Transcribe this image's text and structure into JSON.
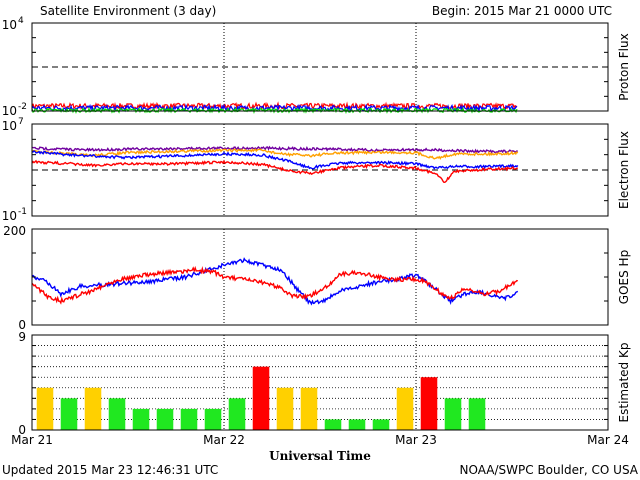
{
  "header": {
    "title": "Satellite Environment (3 day)",
    "begin": "Begin:  2015 Mar 21 0000 UTC"
  },
  "footer": {
    "updated": "Updated 2015 Mar 23 12:46:31 UTC",
    "credit": "NOAA/SWPC Boulder, CO USA",
    "xlabel": "Universal Time"
  },
  "x_ticks": [
    "Mar 21",
    "Mar 22",
    "Mar 23",
    "Mar 24"
  ],
  "chart_data": [
    {
      "type": "line",
      "ylabel": "Proton Flux",
      "yscale": "log",
      "ylim": [
        0.01,
        10000
      ],
      "tick_labels": [
        {
          "base": "10",
          "exp": "4"
        },
        {
          "base": "10",
          "exp": "-2"
        }
      ],
      "threshold": 10,
      "x_range_days": [
        0,
        3
      ],
      "data_end_day": 2.53,
      "series": [
        {
          "color": "#ff0000",
          "level": 0.022,
          "jitter": 0.35
        },
        {
          "color": "#0000ff",
          "level": 0.016,
          "jitter": 0.35
        },
        {
          "color": "#00e000",
          "level": 0.011,
          "jitter": 0.25
        }
      ]
    },
    {
      "type": "line",
      "ylabel": "Electron Flux",
      "yscale": "log",
      "ylim": [
        0.1,
        10000000
      ],
      "tick_labels": [
        {
          "base": "10",
          "exp": "7"
        },
        {
          "base": "10",
          "exp": "-1"
        }
      ],
      "threshold": 1000,
      "x_range_days": [
        0,
        3
      ],
      "series": [
        {
          "color": "#7000a0",
          "points": [
            [
              0,
              80000
            ],
            [
              0.3,
              55000
            ],
            [
              0.5,
              65000
            ],
            [
              0.8,
              75000
            ],
            [
              1.0,
              80000
            ],
            [
              1.2,
              80000
            ],
            [
              1.4,
              70000
            ],
            [
              1.6,
              65000
            ],
            [
              1.8,
              50000
            ],
            [
              2.0,
              60000
            ],
            [
              2.2,
              50000
            ],
            [
              2.3,
              42000
            ],
            [
              2.53,
              42000
            ]
          ]
        },
        {
          "color": "#ffa000",
          "points": [
            [
              0,
              45000
            ],
            [
              0.3,
              18000
            ],
            [
              0.5,
              32000
            ],
            [
              0.8,
              45000
            ],
            [
              1.0,
              50000
            ],
            [
              1.2,
              50000
            ],
            [
              1.3,
              25000
            ],
            [
              1.45,
              18000
            ],
            [
              1.6,
              30000
            ],
            [
              1.8,
              35000
            ],
            [
              2.0,
              32000
            ],
            [
              2.1,
              10000
            ],
            [
              2.2,
              25000
            ],
            [
              2.4,
              25000
            ],
            [
              2.53,
              30000
            ]
          ]
        },
        {
          "color": "#0000ff",
          "points": [
            [
              0,
              40000
            ],
            [
              0.2,
              20000
            ],
            [
              0.5,
              12000
            ],
            [
              0.8,
              18000
            ],
            [
              1.0,
              25000
            ],
            [
              1.2,
              20000
            ],
            [
              1.35,
              5000
            ],
            [
              1.45,
              1500
            ],
            [
              1.6,
              4000
            ],
            [
              1.8,
              4500
            ],
            [
              2.0,
              3500
            ],
            [
              2.1,
              1500
            ],
            [
              2.2,
              2000
            ],
            [
              2.4,
              2000
            ],
            [
              2.53,
              2500
            ]
          ]
        },
        {
          "color": "#ff0000",
          "points": [
            [
              0,
              5000
            ],
            [
              0.2,
              3500
            ],
            [
              0.3,
              2500
            ],
            [
              0.5,
              3500
            ],
            [
              0.8,
              3500
            ],
            [
              1.0,
              5000
            ],
            [
              1.2,
              3000
            ],
            [
              1.35,
              800
            ],
            [
              1.45,
              500
            ],
            [
              1.6,
              1500
            ],
            [
              1.8,
              2500
            ],
            [
              2.0,
              1500
            ],
            [
              2.1,
              500
            ],
            [
              2.15,
              80
            ],
            [
              2.2,
              800
            ],
            [
              2.4,
              1200
            ],
            [
              2.53,
              1500
            ]
          ]
        }
      ]
    },
    {
      "type": "line",
      "ylabel": "GOES Hp",
      "yscale": "linear",
      "ylim": [
        0,
        200
      ],
      "tick_labels": [
        "200",
        "0"
      ],
      "x_range_days": [
        0,
        3
      ],
      "series": [
        {
          "color": "#0000ff",
          "points": [
            [
              0,
              100
            ],
            [
              0.08,
              90
            ],
            [
              0.15,
              65
            ],
            [
              0.25,
              80
            ],
            [
              0.4,
              85
            ],
            [
              0.6,
              90
            ],
            [
              0.8,
              100
            ],
            [
              1.0,
              125
            ],
            [
              1.1,
              135
            ],
            [
              1.15,
              130
            ],
            [
              1.25,
              120
            ],
            [
              1.3,
              115
            ],
            [
              1.38,
              75
            ],
            [
              1.45,
              45
            ],
            [
              1.52,
              50
            ],
            [
              1.6,
              70
            ],
            [
              1.7,
              80
            ],
            [
              1.8,
              90
            ],
            [
              1.9,
              95
            ],
            [
              2.0,
              105
            ],
            [
              2.05,
              90
            ],
            [
              2.1,
              75
            ],
            [
              2.18,
              50
            ],
            [
              2.25,
              65
            ],
            [
              2.33,
              70
            ],
            [
              2.4,
              60
            ],
            [
              2.45,
              55
            ],
            [
              2.5,
              60
            ],
            [
              2.53,
              70
            ]
          ]
        },
        {
          "color": "#ff0000",
          "points": [
            [
              0,
              85
            ],
            [
              0.08,
              60
            ],
            [
              0.15,
              50
            ],
            [
              0.3,
              70
            ],
            [
              0.45,
              95
            ],
            [
              0.6,
              105
            ],
            [
              0.75,
              110
            ],
            [
              0.85,
              115
            ],
            [
              0.95,
              110
            ],
            [
              1.0,
              100
            ],
            [
              1.1,
              95
            ],
            [
              1.2,
              88
            ],
            [
              1.3,
              78
            ],
            [
              1.35,
              60
            ],
            [
              1.45,
              60
            ],
            [
              1.55,
              85
            ],
            [
              1.6,
              105
            ],
            [
              1.7,
              110
            ],
            [
              1.8,
              100
            ],
            [
              1.9,
              95
            ],
            [
              2.0,
              95
            ],
            [
              2.05,
              90
            ],
            [
              2.12,
              70
            ],
            [
              2.18,
              55
            ],
            [
              2.25,
              75
            ],
            [
              2.35,
              65
            ],
            [
              2.43,
              70
            ],
            [
              2.5,
              85
            ],
            [
              2.53,
              92
            ]
          ]
        }
      ]
    },
    {
      "type": "bar",
      "ylabel": "Estimated Kp",
      "ylim": [
        0,
        9
      ],
      "tick_labels": [
        "9",
        "0"
      ],
      "bar_width_days": 0.107,
      "x_range_days": [
        0,
        3
      ],
      "colors": {
        "low": "#20e820",
        "mid": "#ffd000",
        "high": "#ff0000"
      },
      "values": [
        4,
        3,
        4,
        3,
        2,
        2,
        2,
        2,
        3,
        6,
        4,
        4,
        1,
        1,
        1,
        4,
        5,
        3,
        3
      ]
    }
  ]
}
